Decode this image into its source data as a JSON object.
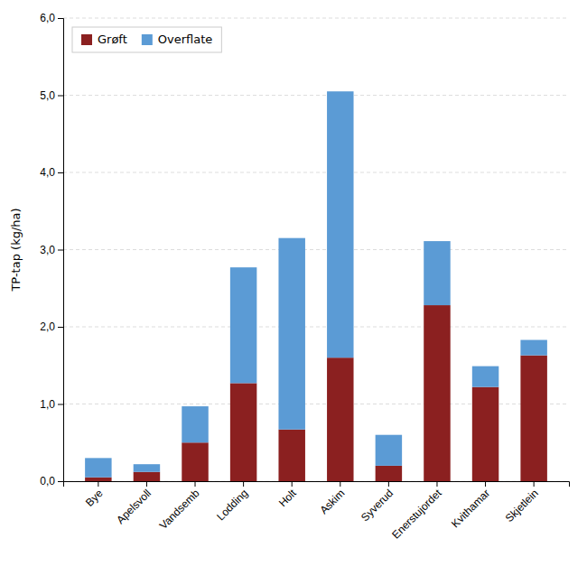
{
  "chart_data": {
    "type": "bar",
    "stacked": true,
    "categories": [
      "Bye",
      "Apelsvoll",
      "Vandsemb",
      "Lodding",
      "Holt",
      "Askim",
      "Syverud",
      "Enerstujordet",
      "Kvithamar",
      "Skjetlein"
    ],
    "series": [
      {
        "name": "Grøft",
        "color": "#8B2020",
        "values": [
          0.05,
          0.12,
          0.5,
          1.27,
          0.67,
          1.6,
          0.2,
          2.28,
          1.22,
          1.63
        ]
      },
      {
        "name": "Overflate",
        "color": "#5B9BD5",
        "values": [
          0.25,
          0.1,
          0.47,
          1.5,
          2.48,
          3.45,
          0.4,
          0.83,
          0.27,
          0.2
        ]
      }
    ],
    "ylabel": "TP-tap (kg/ha)",
    "ylim": [
      0,
      6.0
    ],
    "yticks": [
      {
        "value": 0.0,
        "label": "0,0"
      },
      {
        "value": 1.0,
        "label": "1,0"
      },
      {
        "value": 2.0,
        "label": "2,0"
      },
      {
        "value": 3.0,
        "label": "3,0"
      },
      {
        "value": 4.0,
        "label": "4,0"
      },
      {
        "value": 5.0,
        "label": "5,0"
      },
      {
        "value": 6.0,
        "label": "6,0"
      }
    ],
    "grid": true,
    "legend": "upper left"
  }
}
